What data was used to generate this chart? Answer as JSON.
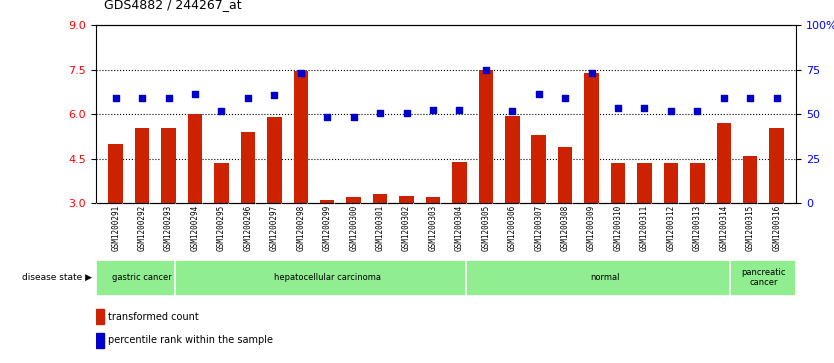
{
  "title": "GDS4882 / 244267_at",
  "samples": [
    "GSM1200291",
    "GSM1200292",
    "GSM1200293",
    "GSM1200294",
    "GSM1200295",
    "GSM1200296",
    "GSM1200297",
    "GSM1200298",
    "GSM1200299",
    "GSM1200300",
    "GSM1200301",
    "GSM1200302",
    "GSM1200303",
    "GSM1200304",
    "GSM1200305",
    "GSM1200306",
    "GSM1200307",
    "GSM1200308",
    "GSM1200309",
    "GSM1200310",
    "GSM1200311",
    "GSM1200312",
    "GSM1200313",
    "GSM1200314",
    "GSM1200315",
    "GSM1200316"
  ],
  "transformed_count": [
    5.0,
    5.55,
    5.55,
    6.0,
    4.35,
    5.4,
    5.9,
    7.45,
    3.1,
    3.2,
    3.3,
    3.25,
    3.2,
    4.4,
    7.5,
    5.95,
    5.3,
    4.9,
    7.4,
    4.35,
    4.35,
    4.35,
    4.35,
    5.7,
    4.6,
    5.55
  ],
  "percentile_rank": [
    6.55,
    6.55,
    6.55,
    6.7,
    6.1,
    6.55,
    6.65,
    7.4,
    5.9,
    5.9,
    6.05,
    6.05,
    6.15,
    6.15,
    7.5,
    6.1,
    6.7,
    6.55,
    7.4,
    6.2,
    6.2,
    6.1,
    6.1,
    6.55,
    6.55,
    6.55
  ],
  "group_bounds": [
    [
      0,
      3,
      "gastric cancer"
    ],
    [
      3,
      14,
      "hepatocellular carcinoma"
    ],
    [
      14,
      24,
      "normal"
    ],
    [
      24,
      26,
      "pancreatic\ncancer"
    ]
  ],
  "bar_color": "#CC2200",
  "dot_color": "#0000CC",
  "ylim_left": [
    3,
    9
  ],
  "ylim_right": [
    0,
    100
  ],
  "yticks_left": [
    3,
    4.5,
    6,
    7.5,
    9
  ],
  "yticks_right": [
    0,
    25,
    50,
    75,
    100
  ],
  "hlines": [
    4.5,
    6.0,
    7.5
  ],
  "bar_width": 0.55,
  "background_color": "#ffffff",
  "group_color": "#90EE90",
  "xtick_bg_color": "#d3d3d3"
}
